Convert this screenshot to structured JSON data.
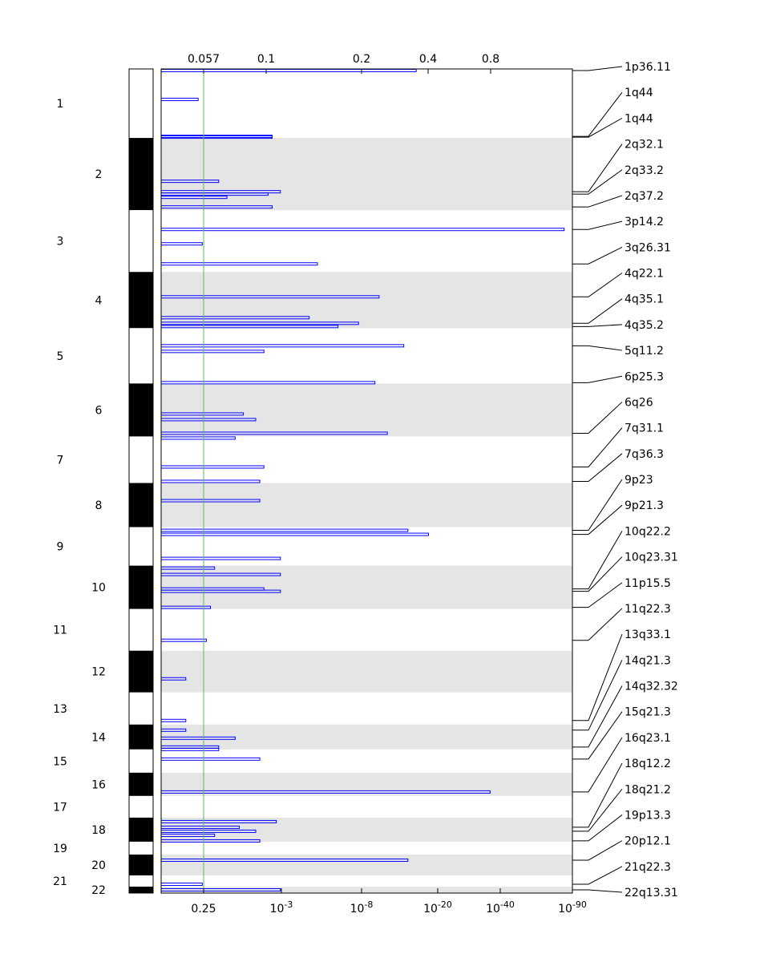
{
  "chart_data": {
    "type": "bar",
    "orientation": "horizontal",
    "title": "",
    "top_axis_label": "",
    "top_ticks": [
      "0.057",
      "0.1",
      "0.2",
      "0.4",
      "0.8"
    ],
    "bottom_ticks": [
      {
        "label": "0.25",
        "base": "",
        "exp": ""
      },
      {
        "label": "",
        "base": "10",
        "exp": "-3"
      },
      {
        "label": "",
        "base": "10",
        "exp": "-8"
      },
      {
        "label": "",
        "base": "10",
        "exp": "-20"
      },
      {
        "label": "",
        "base": "10",
        "exp": "-40"
      },
      {
        "label": "",
        "base": "10",
        "exp": "-90"
      }
    ],
    "threshold_q": 0.25,
    "colors": {
      "bar": "#0000ff",
      "band_shade": "#e5e5e5",
      "threshold": "#5cb85c",
      "chrom_dark": "#000000",
      "chrom_light": "#ffffff"
    },
    "chromosomes": [
      {
        "name": "1",
        "length": 86
      },
      {
        "name": "2",
        "length": 90
      },
      {
        "name": "3",
        "length": 77
      },
      {
        "name": "4",
        "length": 70
      },
      {
        "name": "5",
        "length": 69
      },
      {
        "name": "6",
        "length": 66
      },
      {
        "name": "7",
        "length": 58
      },
      {
        "name": "8",
        "length": 55
      },
      {
        "name": "9",
        "length": 48
      },
      {
        "name": "10",
        "length": 54
      },
      {
        "name": "11",
        "length": 52
      },
      {
        "name": "12",
        "length": 52
      },
      {
        "name": "13",
        "length": 40
      },
      {
        "name": "14",
        "length": 31
      },
      {
        "name": "15",
        "length": 29
      },
      {
        "name": "16",
        "length": 29
      },
      {
        "name": "17",
        "length": 27
      },
      {
        "name": "18",
        "length": 30
      },
      {
        "name": "19",
        "length": 16
      },
      {
        "name": "20",
        "length": 26
      },
      {
        "name": "21",
        "length": 14
      },
      {
        "name": "22",
        "length": 8
      }
    ],
    "peaks": [
      {
        "label": "1p36.11",
        "position": 2,
        "significance": 0.62
      },
      {
        "label": "1q44",
        "position": 84,
        "significance": 0.27
      },
      {
        "label": "1q44",
        "position": 85,
        "significance": 0.27
      },
      {
        "label": "2q32.1",
        "position": 153,
        "significance": 0.29
      },
      {
        "label": "2q33.2",
        "position": 156,
        "significance": 0.26
      },
      {
        "label": "2q37.2",
        "position": 172,
        "significance": 0.27
      },
      {
        "label": "3p14.2",
        "position": 200,
        "significance": 0.98
      },
      {
        "label": "3q26.31",
        "position": 243,
        "significance": 0.38
      },
      {
        "label": "4q22.1",
        "position": 284,
        "significance": 0.53
      },
      {
        "label": "4q35.1",
        "position": 317,
        "significance": 0.48
      },
      {
        "label": "4q35.2",
        "position": 321,
        "significance": 0.43
      },
      {
        "label": "5q11.2",
        "position": 345,
        "significance": 0.59
      },
      {
        "label": "6p25.3",
        "position": 391,
        "significance": 0.52
      },
      {
        "label": "6q26",
        "position": 454,
        "significance": 0.55
      },
      {
        "label": "7q31.1",
        "position": 496,
        "significance": 0.25
      },
      {
        "label": "7q36.3",
        "position": 514,
        "significance": 0.24
      },
      {
        "label": "9p23",
        "position": 575,
        "significance": 0.6
      },
      {
        "label": "9p21.3",
        "position": 580,
        "significance": 0.65
      },
      {
        "label": "10q22.2",
        "position": 648,
        "significance": 0.25
      },
      {
        "label": "10q23.31",
        "position": 651,
        "significance": 0.29
      },
      {
        "label": "11p15.5",
        "position": 671,
        "significance": 0.12
      },
      {
        "label": "11q22.3",
        "position": 712,
        "significance": 0.11
      },
      {
        "label": "13q33.1",
        "position": 812,
        "significance": 0.06
      },
      {
        "label": "14q21.3",
        "position": 824,
        "significance": 0.06
      },
      {
        "label": "14q32.32",
        "position": 845,
        "significance": 0.14
      },
      {
        "label": "15q21.3",
        "position": 860,
        "significance": 0.24
      },
      {
        "label": "16q23.1",
        "position": 901,
        "significance": 0.8
      },
      {
        "label": "18q12.2",
        "position": 945,
        "significance": 0.19
      },
      {
        "label": "18q21.2",
        "position": 950,
        "significance": 0.23
      },
      {
        "label": "19p13.3",
        "position": 962,
        "significance": 0.24
      },
      {
        "label": "20p12.1",
        "position": 986,
        "significance": 0.6
      },
      {
        "label": "21q22.3",
        "position": 1016,
        "significance": 0.1
      },
      {
        "label": "22q13.31",
        "position": 1023,
        "significance": 0.29
      }
    ],
    "extra_bars": [
      {
        "position": 38,
        "significance": 0.09
      },
      {
        "position": 140,
        "significance": 0.14
      },
      {
        "position": 160,
        "significance": 0.16
      },
      {
        "position": 218,
        "significance": 0.1
      },
      {
        "position": 310,
        "significance": 0.36
      },
      {
        "position": 352,
        "significance": 0.25
      },
      {
        "position": 430,
        "significance": 0.2
      },
      {
        "position": 437,
        "significance": 0.23
      },
      {
        "position": 460,
        "significance": 0.18
      },
      {
        "position": 538,
        "significance": 0.24
      },
      {
        "position": 610,
        "significance": 0.29
      },
      {
        "position": 622,
        "significance": 0.13
      },
      {
        "position": 630,
        "significance": 0.29
      },
      {
        "position": 760,
        "significance": 0.06
      },
      {
        "position": 834,
        "significance": 0.18
      },
      {
        "position": 848,
        "significance": 0.14
      },
      {
        "position": 938,
        "significance": 0.28
      },
      {
        "position": 955,
        "significance": 0.13
      }
    ]
  }
}
